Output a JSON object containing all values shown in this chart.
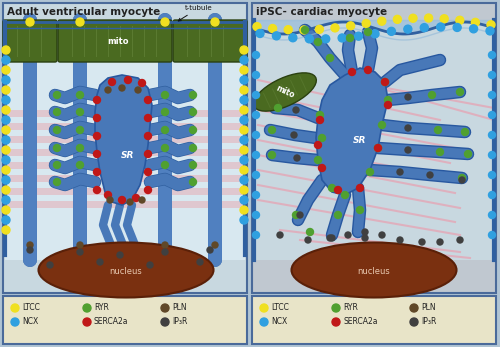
{
  "title_left": "Adult ventricular myocyte",
  "title_right": "iPSC- cardiac myocyte",
  "ttubule_label": "t-tubule",
  "sr_label": "SR",
  "mito_label": "mito",
  "nucleus_label": "nucleus",
  "bg_outer": "#b0c4d4",
  "bg_left": "#c8d8e0",
  "bg_right": "#c0c8d0",
  "mito_color": "#4a6a20",
  "mito_dark": "#2a4010",
  "mito_stripe": "#5a7a30",
  "nucleus_color": "#7a3010",
  "nucleus_edge": "#5a2008",
  "sr_fill": "#4878b8",
  "sr_edge": "#2858a0",
  "ttube_fill": "#5080c0",
  "ttube_edge": "#3060a0",
  "sarcomere_color": "#e8a0a8",
  "legend_bg": "#e8e4c8",
  "panel_border": "#4a6a9a",
  "font_color": "#222222",
  "pink_line": "#e8a0b0",
  "cell_inner_l": "#d8e8f0",
  "cell_inner_r": "#c8d8e0",
  "colors": {
    "LTCC": "#f0e020",
    "NCX": "#30a0e0",
    "RYR": "#50a030",
    "SERCA2a": "#c01818",
    "PLN": "#604828",
    "IP3R": "#404040"
  },
  "legend_items": [
    {
      "label": "LTCC",
      "color": "#f0e020"
    },
    {
      "label": "NCX",
      "color": "#30a0e0"
    },
    {
      "label": "RYR",
      "color": "#50a030"
    },
    {
      "label": "SERCA2a",
      "color": "#c01818"
    },
    {
      "label": "PLN",
      "color": "#604828"
    },
    {
      "label": "IP₃R",
      "color": "#404040"
    }
  ],
  "title_fontsize": 7.5,
  "legend_fontsize": 5.5
}
